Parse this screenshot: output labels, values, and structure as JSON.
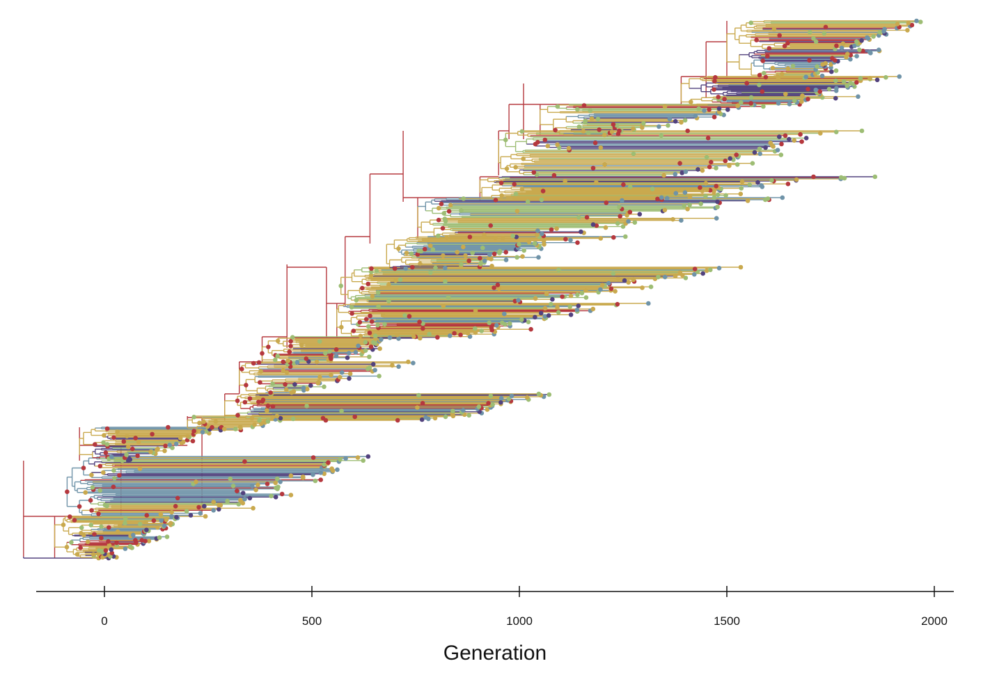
{
  "chart_data": {
    "type": "phylogenetic-tree",
    "orientation": "horizontal",
    "title": "",
    "xlabel": "Generation",
    "ylabel": "",
    "x_ticks": [
      0,
      500,
      1000,
      1500,
      2000
    ],
    "x_tick_labels": [
      "0",
      "500",
      "1000",
      "1500",
      "2000"
    ],
    "xlim": [
      -160,
      2040
    ],
    "grid": false,
    "legend": "none",
    "tip_count": 460,
    "root_generation": -195,
    "last_generation": 2000,
    "trunk_nodes_generation": [
      -195,
      -120,
      -60,
      40,
      200,
      235,
      290,
      380,
      440,
      535,
      580,
      640,
      720,
      790,
      830,
      880,
      930,
      975,
      1010,
      1060,
      1110,
      1180,
      1260,
      1340,
      1440,
      1520,
      1600,
      1680,
      1760,
      1850,
      1930
    ],
    "clades": [
      {
        "origin": -80,
        "tip_range": [
          -70,
          700
        ],
        "color_mix": "mixed"
      },
      {
        "origin": 40,
        "tip_range": [
          300,
          1130
        ],
        "color_mix": "mixed"
      },
      {
        "origin": 380,
        "tip_range": [
          580,
          1560
        ],
        "color_mix": "mixed"
      },
      {
        "origin": 640,
        "tip_range": [
          880,
          1920
        ],
        "color_mix": "mixed"
      },
      {
        "origin": 975,
        "tip_range": [
          1500,
          1990
        ],
        "color_mix": "mixed"
      }
    ],
    "colors": {
      "red": "#b5383e",
      "gold": "#c9a94e",
      "green": "#9dbd74",
      "blue": "#6f93a8",
      "purple": "#52427e",
      "axis": "#111111"
    }
  }
}
